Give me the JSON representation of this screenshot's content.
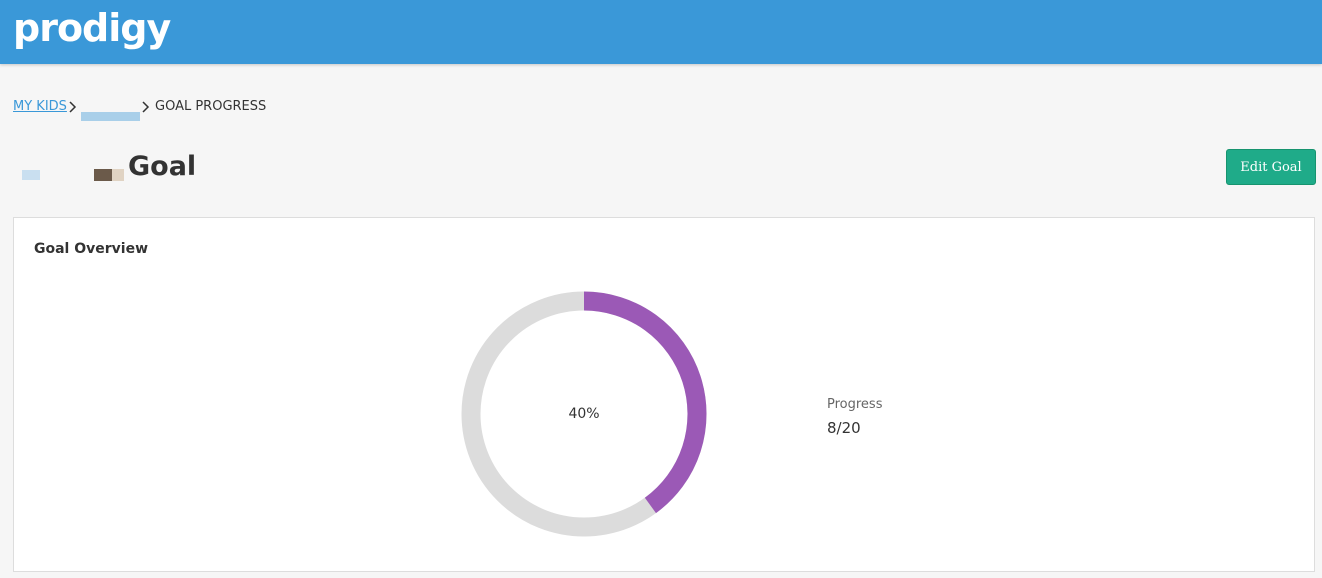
{
  "header": {
    "logo": "prodigy"
  },
  "breadcrumb": {
    "items": [
      "MY KIDS",
      "GOAL PROGRESS"
    ]
  },
  "page": {
    "title": "Goal",
    "button": "Edit Goal"
  },
  "card": {
    "title": "Goal Overview",
    "progress": {
      "value": 40,
      "value_label": "40%",
      "color": "#9b59b6",
      "track_color": "#dcdcdc",
      "label": "Progress",
      "count": "8/20"
    }
  }
}
